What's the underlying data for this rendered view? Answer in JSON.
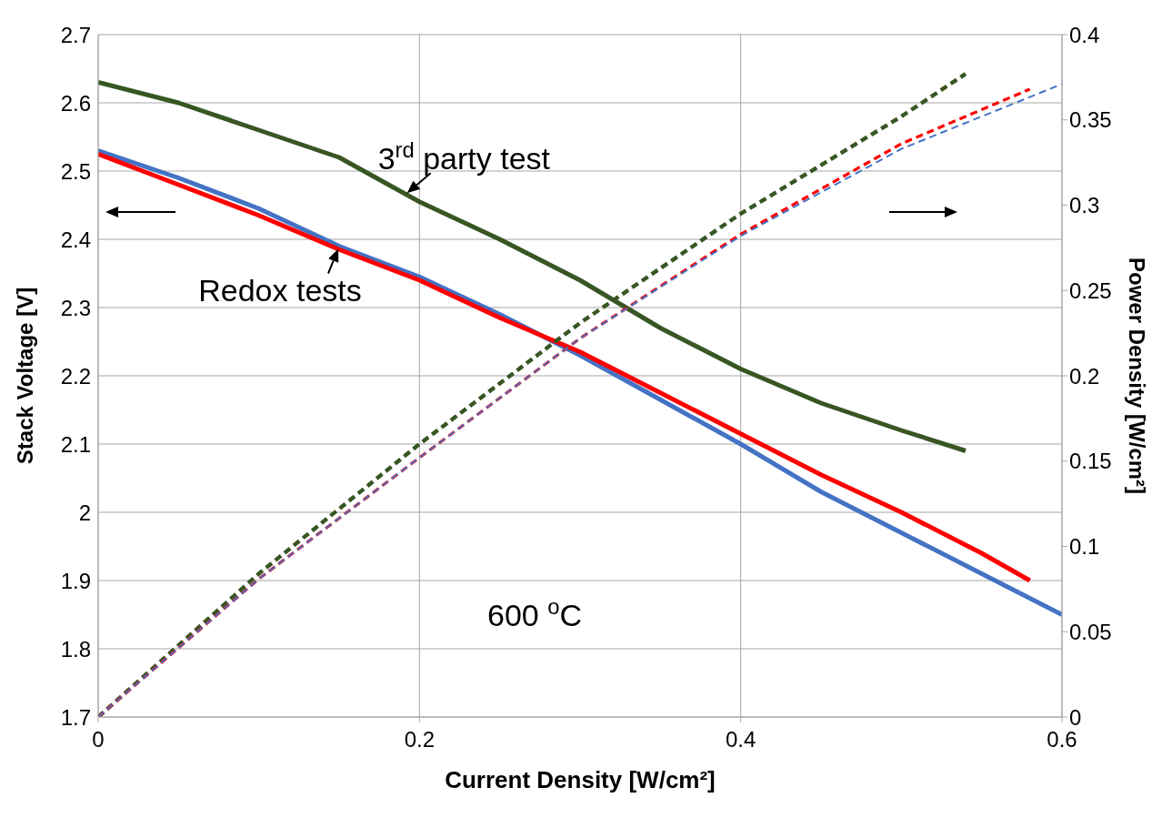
{
  "chart_data": {
    "type": "line",
    "xlabel": "Current Density [W/cm²]",
    "ylabel": "Stack Voltage [V]",
    "y2label": "Power Density [W/cm²]",
    "xlim": [
      0,
      0.6
    ],
    "xticks": [
      0,
      0.2,
      0.4,
      0.6
    ],
    "ylim": [
      1.7,
      2.7
    ],
    "yticks": [
      1.7,
      1.8,
      1.9,
      2,
      2.1,
      2.2,
      2.3,
      2.4,
      2.5,
      2.6,
      2.7
    ],
    "y2lim": [
      0,
      0.4
    ],
    "y2ticks": [
      0,
      0.05,
      0.1,
      0.15,
      0.2,
      0.25,
      0.3,
      0.35,
      0.4
    ],
    "grid": true,
    "legend": false,
    "annotations": [
      {
        "text": "3$^{rd}$ party test",
        "x": 0.19,
        "y": 2.465
      },
      {
        "text": "Redox tests",
        "x": 0.15,
        "y": 2.39
      },
      "600 $^{o}$C"
    ],
    "series": [
      {
        "color": "#375623",
        "line_style": "solid",
        "x": [
          0,
          0.05,
          0.1,
          0.15,
          0.2,
          0.25,
          0.3,
          0.35,
          0.4,
          0.45,
          0.5,
          0.54
        ],
        "values": [
          2.63,
          2.6,
          2.56,
          2.52,
          2.455,
          2.4,
          2.34,
          2.27,
          2.21,
          2.16,
          2.12,
          2.09
        ]
      },
      {
        "color": "#4472c4",
        "line_style": "solid",
        "x": [
          0,
          0.05,
          0.1,
          0.15,
          0.2,
          0.25,
          0.3,
          0.35,
          0.4,
          0.45,
          0.5,
          0.55,
          0.6
        ],
        "values": [
          2.53,
          2.49,
          2.445,
          2.39,
          2.345,
          2.29,
          2.23,
          2.165,
          2.1,
          2.03,
          1.97,
          1.91,
          1.85
        ]
      },
      {
        "color": "#ff0000",
        "line_style": "solid",
        "x": [
          0,
          0.05,
          0.1,
          0.15,
          0.2,
          0.25,
          0.3,
          0.35,
          0.4,
          0.45,
          0.5,
          0.55,
          0.58
        ],
        "values": [
          2.525,
          2.48,
          2.435,
          2.385,
          2.34,
          2.285,
          2.235,
          2.175,
          2.115,
          2.055,
          2,
          1.94,
          1.9
        ]
      },
      {
        "color": "#375623",
        "line_style": "dashed",
        "axis": "y2",
        "x": [
          0,
          0.1,
          0.2,
          0.3,
          0.4,
          0.5,
          0.54
        ],
        "values": [
          0,
          0.084,
          0.16,
          0.231,
          0.295,
          0.352,
          0.377
        ]
      },
      {
        "color": "#ff0000",
        "line_style": "dashed",
        "axis": "y2",
        "x": [
          0,
          0.1,
          0.2,
          0.3,
          0.4,
          0.5,
          0.58
        ],
        "values": [
          0,
          0.081,
          0.152,
          0.222,
          0.283,
          0.336,
          0.368
        ]
      },
      {
        "color": "#4472c4",
        "line_style": "dashed",
        "axis": "y2",
        "x": [
          0,
          0.1,
          0.2,
          0.3,
          0.4,
          0.5,
          0.6
        ],
        "values": [
          0,
          0.081,
          0.152,
          0.222,
          0.282,
          0.333,
          0.371
        ]
      }
    ]
  }
}
